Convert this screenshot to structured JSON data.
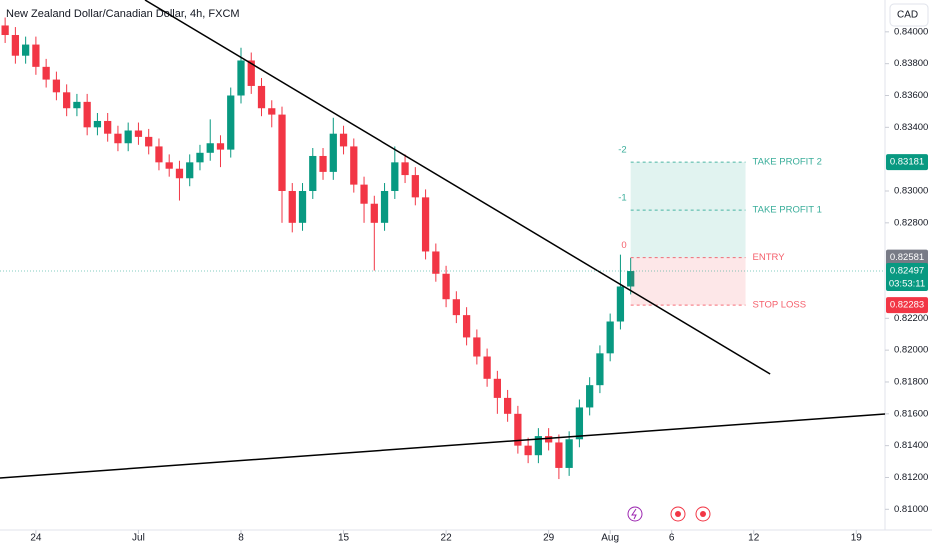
{
  "chart_data": {
    "type": "candlestick",
    "title": "New Zealand Dollar/Canadian Dollar, 4h, FXCM",
    "currency": "CAD",
    "up_color": "#089981",
    "down_color": "#f23645",
    "xlim": [
      -1.75,
      41.4
    ],
    "ylim": [
      0.8087,
      0.842
    ],
    "xticks": [
      {
        "value": 0,
        "label": "24"
      },
      {
        "value": 5,
        "label": "Jul"
      },
      {
        "value": 10,
        "label": "8"
      },
      {
        "value": 15,
        "label": "15"
      },
      {
        "value": 20,
        "label": "22"
      },
      {
        "value": 25,
        "label": "29"
      },
      {
        "value": 28,
        "label": "Aug"
      },
      {
        "value": 31,
        "label": "6"
      },
      {
        "value": 35,
        "label": "12"
      },
      {
        "value": 40,
        "label": "19"
      }
    ],
    "yticks": [
      {
        "value": 0.84,
        "label": "0.84000"
      },
      {
        "value": 0.838,
        "label": "0.83800"
      },
      {
        "value": 0.836,
        "label": "0.83600"
      },
      {
        "value": 0.834,
        "label": "0.83400"
      },
      {
        "value": 0.83,
        "label": "0.83000"
      },
      {
        "value": 0.828,
        "label": "0.82800"
      },
      {
        "value": 0.822,
        "label": "0.82200"
      },
      {
        "value": 0.82,
        "label": "0.82000"
      },
      {
        "value": 0.818,
        "label": "0.81800"
      },
      {
        "value": 0.816,
        "label": "0.81600"
      },
      {
        "value": 0.814,
        "label": "0.81400"
      },
      {
        "value": 0.812,
        "label": "0.81200"
      },
      {
        "value": 0.81,
        "label": "0.81000"
      }
    ],
    "x": [
      -1.5,
      -1,
      -0.5,
      0,
      0.5,
      1,
      1.5,
      2,
      2.5,
      3,
      3.5,
      4,
      4.5,
      5,
      5.5,
      6,
      6.5,
      7,
      7.5,
      8,
      8.5,
      9,
      9.5,
      10,
      10.5,
      11,
      11.5,
      12,
      12.5,
      13,
      13.5,
      14,
      14.5,
      15,
      15.5,
      16,
      16.5,
      17,
      17.5,
      18,
      18.5,
      19,
      19.5,
      20,
      20.5,
      21,
      21.5,
      22,
      22.5,
      23,
      23.5,
      24,
      24.5,
      25,
      25.5,
      26,
      26.5,
      27,
      27.5,
      28,
      28.5,
      29
    ],
    "open": [
      0.8404,
      0.8398,
      0.8385,
      0.8392,
      0.8378,
      0.837,
      0.8362,
      0.8352,
      0.8356,
      0.834,
      0.8344,
      0.8336,
      0.833,
      0.8338,
      0.8334,
      0.8328,
      0.8318,
      0.8314,
      0.8308,
      0.8318,
      0.8324,
      0.833,
      0.8326,
      0.836,
      0.8382,
      0.8366,
      0.8352,
      0.8348,
      0.83,
      0.828,
      0.83,
      0.8322,
      0.8312,
      0.8336,
      0.8328,
      0.8304,
      0.8292,
      0.828,
      0.83,
      0.8318,
      0.831,
      0.8296,
      0.8262,
      0.8248,
      0.8232,
      0.8222,
      0.8208,
      0.8196,
      0.8182,
      0.817,
      0.816,
      0.814,
      0.8134,
      0.8146,
      0.8142,
      0.8126,
      0.8144,
      0.8164,
      0.8178,
      0.8198,
      0.8218,
      0.824
    ],
    "high": [
      0.8409,
      0.8403,
      0.8397,
      0.8397,
      0.8383,
      0.8375,
      0.8367,
      0.8361,
      0.8361,
      0.8349,
      0.8349,
      0.8341,
      0.8343,
      0.8343,
      0.8339,
      0.8333,
      0.8323,
      0.8319,
      0.8323,
      0.8329,
      0.8345,
      0.8335,
      0.8365,
      0.839,
      0.8387,
      0.8371,
      0.8357,
      0.8353,
      0.8305,
      0.8305,
      0.8327,
      0.8327,
      0.8346,
      0.8341,
      0.8333,
      0.8309,
      0.8297,
      0.8305,
      0.8328,
      0.8323,
      0.8315,
      0.8301,
      0.8267,
      0.8253,
      0.8237,
      0.8227,
      0.8213,
      0.8201,
      0.8187,
      0.8175,
      0.8165,
      0.8145,
      0.8151,
      0.8151,
      0.8147,
      0.8149,
      0.8169,
      0.8183,
      0.8203,
      0.8223,
      0.826,
      0.8258
    ],
    "low": [
      0.8393,
      0.838,
      0.838,
      0.8373,
      0.8365,
      0.8357,
      0.8347,
      0.8347,
      0.8335,
      0.8335,
      0.8331,
      0.8325,
      0.8325,
      0.8329,
      0.8323,
      0.8313,
      0.8309,
      0.8294,
      0.8303,
      0.8313,
      0.8319,
      0.8315,
      0.8321,
      0.8355,
      0.8361,
      0.8347,
      0.834,
      0.828,
      0.8274,
      0.8275,
      0.8295,
      0.8307,
      0.8307,
      0.8323,
      0.8299,
      0.828,
      0.825,
      0.8275,
      0.8295,
      0.8305,
      0.8291,
      0.8257,
      0.8243,
      0.8227,
      0.8217,
      0.8203,
      0.8191,
      0.8177,
      0.816,
      0.8155,
      0.8135,
      0.8129,
      0.8129,
      0.8137,
      0.8119,
      0.8121,
      0.8139,
      0.8159,
      0.8173,
      0.8193,
      0.8213,
      0.8235
    ],
    "close": [
      0.8398,
      0.8385,
      0.8392,
      0.8378,
      0.837,
      0.8362,
      0.8352,
      0.8356,
      0.834,
      0.8344,
      0.8336,
      0.833,
      0.8338,
      0.8334,
      0.8328,
      0.8318,
      0.8314,
      0.8308,
      0.8318,
      0.8324,
      0.833,
      0.8326,
      0.836,
      0.8382,
      0.8366,
      0.8352,
      0.8348,
      0.83,
      0.828,
      0.83,
      0.8322,
      0.8312,
      0.8336,
      0.8328,
      0.8304,
      0.8292,
      0.828,
      0.83,
      0.8318,
      0.831,
      0.8296,
      0.8262,
      0.8248,
      0.8232,
      0.8222,
      0.8208,
      0.8196,
      0.8182,
      0.817,
      0.816,
      0.814,
      0.8134,
      0.8146,
      0.8142,
      0.8126,
      0.8144,
      0.8164,
      0.8178,
      0.8198,
      0.8218,
      0.824,
      0.82497
    ],
    "trendlines": [
      {
        "x": [
          5.32,
          35.8
        ],
        "y": [
          0.842,
          0.8185
        ]
      },
      {
        "x": [
          -1.75,
          41.4
        ],
        "y": [
          0.81197,
          0.81599
        ]
      }
    ],
    "position": {
      "x": [
        29,
        34.6
      ],
      "levels": [
        {
          "name": "TAKE PROFIT 2",
          "index": "-2",
          "value": 0.83181,
          "label": "0.83181",
          "color": "#089981"
        },
        {
          "name": "TAKE PROFIT 1",
          "index": "-1",
          "value": 0.8288
        },
        {
          "name": "ENTRY",
          "index": "0",
          "value": 0.82581,
          "label": "0.82581",
          "color": "#787b86"
        },
        {
          "name": "STOP LOSS",
          "value": 0.82283,
          "label": "0.82283",
          "color": "#f23645"
        }
      ]
    },
    "last_price": {
      "value": 0.82497,
      "label": "0.82497",
      "countdown": "03:53:11",
      "color": "#089981"
    }
  }
}
